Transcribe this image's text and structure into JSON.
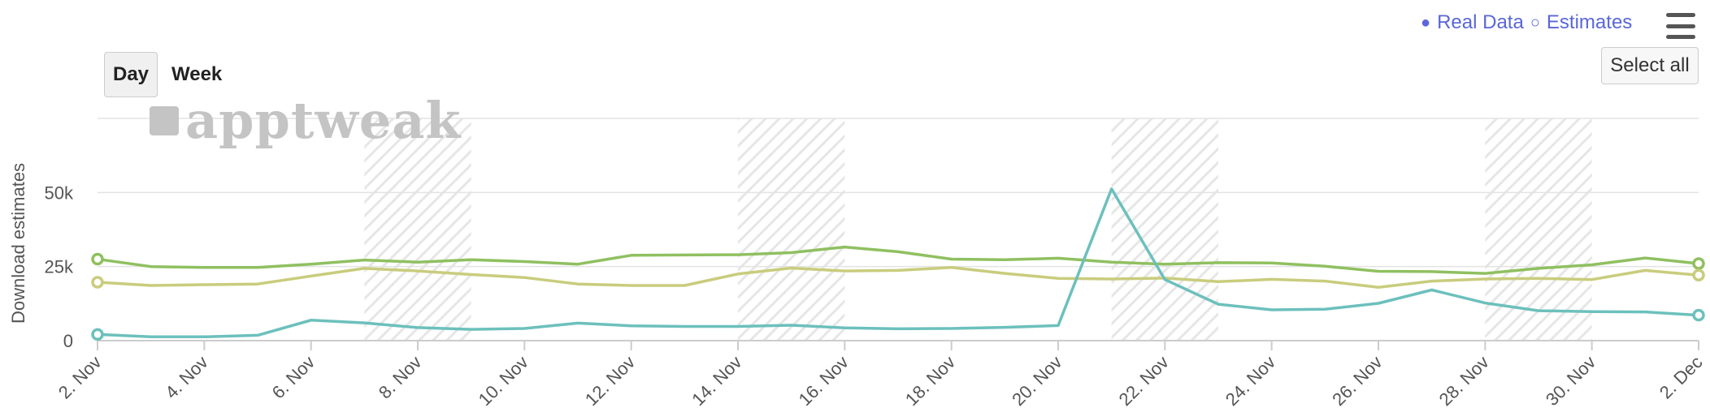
{
  "legend": {
    "real_label": "Real Data",
    "estimate_label": "Estimates",
    "real_mark": "●",
    "estimate_mark": "○",
    "color": "#5a67d8"
  },
  "controls": {
    "select_all_label": "Select all",
    "ranges": [
      {
        "label": "Day",
        "active": true
      },
      {
        "label": "Week",
        "active": false
      }
    ]
  },
  "watermark": {
    "text": "apptweak"
  },
  "chart_data": {
    "type": "line",
    "ylabel": "Download estimates",
    "xlabel": "",
    "ylim": [
      0,
      75000
    ],
    "yticks": [
      0,
      25000,
      50000
    ],
    "ytick_labels": [
      "0",
      "25k",
      "50k"
    ],
    "grid": true,
    "x": [
      "2. Nov",
      "3. Nov",
      "4. Nov",
      "5. Nov",
      "6. Nov",
      "7. Nov",
      "8. Nov",
      "9. Nov",
      "10. Nov",
      "11. Nov",
      "12. Nov",
      "13. Nov",
      "14. Nov",
      "15. Nov",
      "16. Nov",
      "17. Nov",
      "18. Nov",
      "19. Nov",
      "20. Nov",
      "21. Nov",
      "22. Nov",
      "23. Nov",
      "24. Nov",
      "25. Nov",
      "26. Nov",
      "27. Nov",
      "28. Nov",
      "29. Nov",
      "30. Nov",
      "1. Dec",
      "2. Dec"
    ],
    "xtick_labels": [
      "2. Nov",
      "4. Nov",
      "6. Nov",
      "8. Nov",
      "10. Nov",
      "12. Nov",
      "14. Nov",
      "16. Nov",
      "18. Nov",
      "20. Nov",
      "22. Nov",
      "24. Nov",
      "26. Nov",
      "28. Nov",
      "30. Nov",
      "2. Dec"
    ],
    "shaded_ranges": [
      [
        "7. Nov",
        "9. Nov"
      ],
      [
        "14. Nov",
        "16. Nov"
      ],
      [
        "21. Nov",
        "23. Nov"
      ],
      [
        "28. Nov",
        "30. Nov"
      ]
    ],
    "series": [
      {
        "color": "#8fc060",
        "values": [
          27500,
          25000,
          24700,
          24700,
          25800,
          27200,
          26500,
          27300,
          26700,
          25800,
          28800,
          28900,
          29000,
          29700,
          31600,
          30000,
          27500,
          27300,
          27800,
          26500,
          25800,
          26300,
          26200,
          25100,
          23400,
          23300,
          22700,
          24400,
          25600,
          27900,
          26000
        ]
      },
      {
        "color": "#c9cc7c",
        "values": [
          19700,
          18600,
          18900,
          19100,
          21800,
          24400,
          23500,
          22300,
          21300,
          19100,
          18600,
          18600,
          22500,
          24500,
          23500,
          23700,
          24700,
          22700,
          21000,
          20800,
          21100,
          19900,
          20700,
          20100,
          18000,
          20100,
          20800,
          21000,
          20600,
          23700,
          22100
        ]
      },
      {
        "color": "#6cc0bc",
        "values": [
          2100,
          1300,
          1300,
          1800,
          6900,
          6000,
          4400,
          3800,
          4100,
          5900,
          5000,
          4800,
          4800,
          5200,
          4300,
          4000,
          4100,
          4500,
          5100,
          51200,
          20600,
          12300,
          10400,
          10600,
          12600,
          17100,
          12700,
          10100,
          9800,
          9700,
          8600
        ]
      }
    ]
  }
}
